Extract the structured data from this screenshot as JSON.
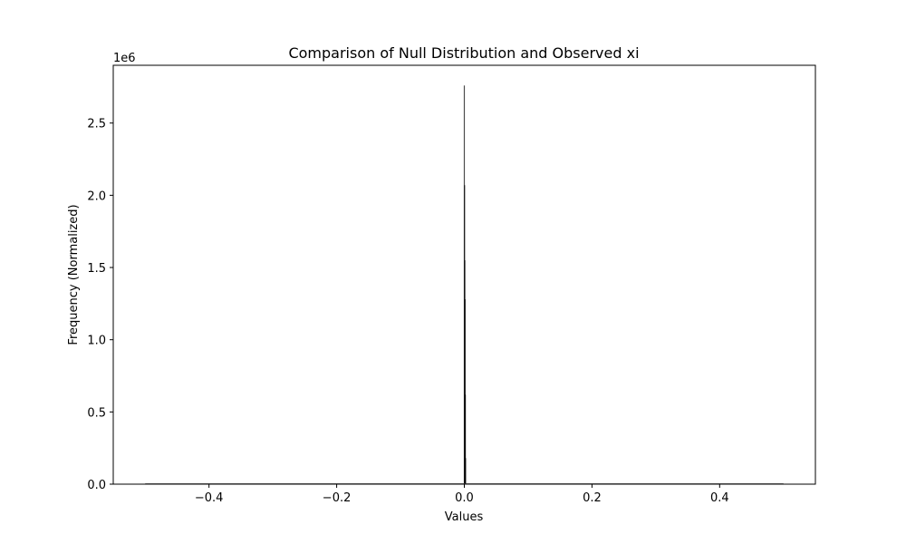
{
  "chart_data": {
    "type": "bar",
    "title": "Comparison of Null Distribution and Observed xi",
    "xlabel": "Values",
    "ylabel": "Frequency (Normalized)",
    "y_offset_text": "1e6",
    "xlim": [
      -0.55,
      0.55
    ],
    "ylim": [
      0,
      2.9
    ],
    "xticks": [
      -0.4,
      -0.2,
      0.0,
      0.2,
      0.4
    ],
    "xtick_labels": [
      "−0.4",
      "−0.2",
      "0.0",
      "0.2",
      "0.4"
    ],
    "yticks": [
      0.0,
      0.5,
      1.0,
      1.5,
      2.0,
      2.5
    ],
    "ytick_labels": [
      "0.0",
      "0.5",
      "1.0",
      "1.5",
      "2.0",
      "2.5"
    ],
    "y_unit_scale": 1000000,
    "grid": false,
    "series": [
      {
        "bar_width": 0.0004,
        "x": [
          -0.5,
          0.0,
          0.0004,
          0.0008,
          0.0012,
          0.0016,
          0.002,
          0.5
        ],
        "values": [
          0.002,
          2.76,
          2.07,
          1.55,
          1.28,
          0.62,
          0.18,
          0.002
        ]
      }
    ]
  }
}
